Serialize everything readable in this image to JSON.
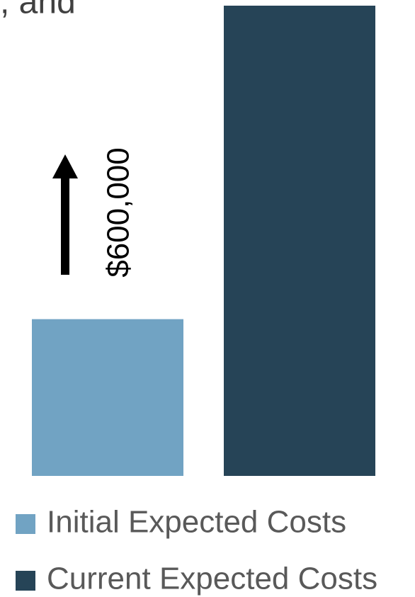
{
  "chart_data": {
    "type": "bar",
    "text_fragment": ", and",
    "annotation": "$600,000",
    "series": [
      {
        "name": "Initial Expected Costs",
        "color": "#71a3c3",
        "values": [
          300000
        ]
      },
      {
        "name": "Current Expected Costs",
        "color": "#264457",
        "values": [
          900000
        ]
      }
    ]
  }
}
